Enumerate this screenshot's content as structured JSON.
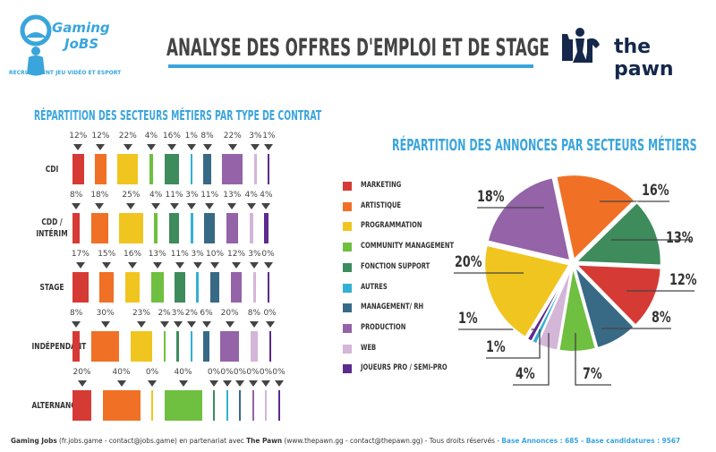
{
  "header": {
    "logo_left": {
      "line1": "Gaming",
      "line2": "JoBS",
      "tagline": "RECRUTEMENT JEU VIDÉO ET ESPORT"
    },
    "title": "ANALYSE DES OFFRES D'EMPLOI ET DE STAGE",
    "logo_right": {
      "text": "the pawn",
      "icon": "chess-pawn-knight-icon"
    }
  },
  "colors": {
    "accent": "#3aa5dc",
    "title": "#444444",
    "pawn": "#15284b"
  },
  "sectors": [
    {
      "name": "Marketing",
      "color": "#d63a35"
    },
    {
      "name": "Artistique",
      "color": "#f07025"
    },
    {
      "name": "Programmation",
      "color": "#f1c51f"
    },
    {
      "name": "Community Management",
      "color": "#6fbf40"
    },
    {
      "name": "Fonction Support",
      "color": "#3e8b5c"
    },
    {
      "name": "Autres",
      "color": "#33b0d4"
    },
    {
      "name": "Management/ RH",
      "color": "#386a85"
    },
    {
      "name": "Production",
      "color": "#9463a8"
    },
    {
      "name": "Web",
      "color": "#d3b6d8"
    },
    {
      "name": "Joueurs Pro / Semi-Pro",
      "color": "#5b2b8e"
    }
  ],
  "chart_data": [
    {
      "type": "bar",
      "title": "Répartition des secteurs métiers par type de contrat",
      "categories": [
        "Marketing",
        "Artistique",
        "Programmation",
        "Community Management",
        "Fonction Support",
        "Autres",
        "Management/ RH",
        "Production",
        "Web",
        "Joueurs Pro / Semi-Pro"
      ],
      "series": [
        {
          "name": "CDI",
          "values": [
            12,
            12,
            22,
            4,
            16,
            1,
            8,
            22,
            3,
            1
          ]
        },
        {
          "name": "CDD / Intérim",
          "values": [
            8,
            18,
            25,
            4,
            11,
            3,
            11,
            13,
            4,
            4
          ]
        },
        {
          "name": "Stage",
          "values": [
            17,
            15,
            16,
            13,
            11,
            3,
            10,
            12,
            3,
            0
          ]
        },
        {
          "name": "Indépendant",
          "values": [
            8,
            30,
            23,
            2,
            3,
            2,
            6,
            20,
            8,
            0
          ]
        },
        {
          "name": "Alternance",
          "values": [
            20,
            40,
            0,
            40,
            0,
            0,
            0,
            0,
            0,
            0
          ]
        }
      ],
      "unit": "%"
    },
    {
      "type": "pie",
      "title": "Répartition des annonces par secteurs métiers",
      "legend": "left",
      "slices": [
        {
          "label": "Artistique",
          "value": 16
        },
        {
          "label": "Fonction Support",
          "value": 13
        },
        {
          "label": "Marketing",
          "value": 12
        },
        {
          "label": "Management/ RH",
          "value": 8
        },
        {
          "label": "Community Management",
          "value": 7
        },
        {
          "label": "Web",
          "value": 4
        },
        {
          "label": "Autres",
          "value": 1
        },
        {
          "label": "Joueurs Pro / Semi-Pro",
          "value": 1
        },
        {
          "label": "Programmation",
          "value": 20
        },
        {
          "label": "Production",
          "value": 18
        }
      ],
      "unit": "%"
    }
  ],
  "footer": {
    "brand1": "Gaming Jobs",
    "text1": " (fr.jobs.game - contact@jobs.game) en partenariat avec ",
    "brand2": "The Pawn",
    "text2": " (www.thepawn.gg - contact@thepawn.gg) - Tous droits réservés - ",
    "stat1": "Base Annonces : 685",
    "sep": " - ",
    "stat2": "Base candidatures : 9567"
  }
}
